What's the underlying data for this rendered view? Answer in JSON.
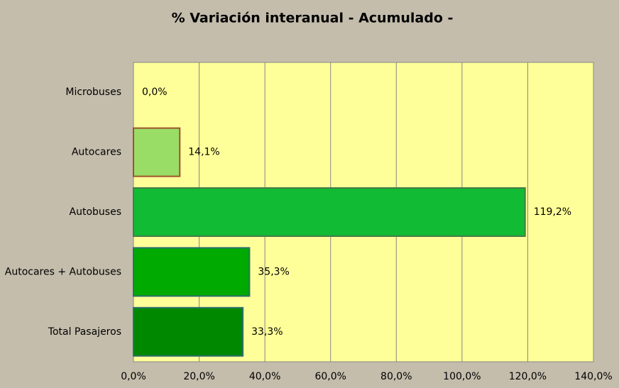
{
  "chart_data": {
    "type": "hbar",
    "title": "% Variación interanual - Acumulado -",
    "categories": [
      "Microbuses",
      "Autocares",
      "Autobuses",
      "Autocares + Autobuses",
      "Total Pasajeros"
    ],
    "values": [
      0,
      14.1,
      119.2,
      35.3,
      33.3
    ],
    "value_labels": [
      "0,0%",
      "14,1%",
      "119,2%",
      "35,3%",
      "33,3%"
    ],
    "colors": [
      "#99dd66",
      "#99dd66",
      "#11bb33",
      "#00aa00",
      "#008800"
    ],
    "border_colors": [
      "#a0522d",
      "#a0522d",
      "#4a7a4a",
      "#2f6f6f",
      "#2f6f6f"
    ],
    "xlim": [
      0,
      140
    ],
    "xticks": [
      {
        "value": 0,
        "label": "0,0%"
      },
      {
        "value": 20,
        "label": "20,0%"
      },
      {
        "value": 40,
        "label": "40,0%"
      },
      {
        "value": 60,
        "label": "60,0%"
      },
      {
        "value": 80,
        "label": "80,0%"
      },
      {
        "value": 100,
        "label": "100,0%"
      },
      {
        "value": 120,
        "label": "120,0%"
      },
      {
        "value": 140,
        "label": "140,0%"
      }
    ],
    "grid": true
  }
}
